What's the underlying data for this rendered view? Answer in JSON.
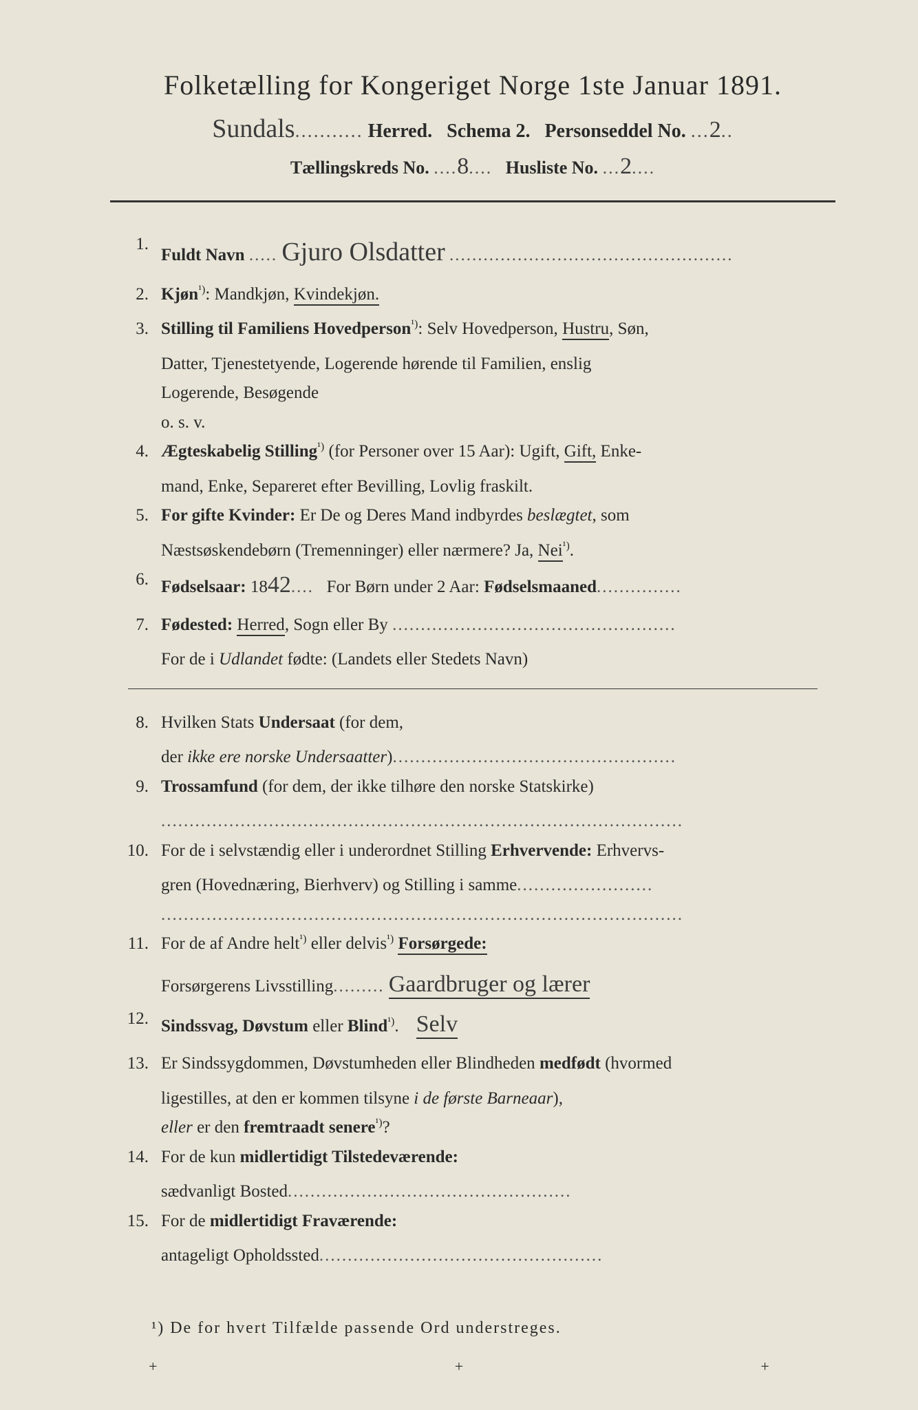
{
  "header": {
    "title": "Folketælling for Kongeriget Norge 1ste Januar 1891.",
    "herred_handwritten": "Sundals",
    "herred_label": "Herred.",
    "schema_label": "Schema 2.",
    "personseddel_label": "Personseddel No.",
    "personseddel_no": "2",
    "kreds_label": "Tællingskreds No.",
    "kreds_no": "8",
    "husliste_label": "Husliste No.",
    "husliste_no": "2"
  },
  "items": {
    "i1": {
      "num": "1.",
      "label": "Fuldt Navn",
      "value": "Gjuro Olsdatter"
    },
    "i2": {
      "num": "2.",
      "label": "Kjøn",
      "text": "Mandkjøn, ",
      "underlined": "Kvindekjøn."
    },
    "i3": {
      "num": "3.",
      "label": "Stilling til Familiens Hovedperson",
      "line1a": "Selv Hovedperson, ",
      "line1u": "Hustru",
      "line1b": ", Søn,",
      "line2": "Datter, Tjenestetyende, Logerende hørende til Familien, enslig",
      "line3": "Logerende, Besøgende",
      "line4": "o. s. v."
    },
    "i4": {
      "num": "4.",
      "label": "Ægteskabelig Stilling",
      "line1a": "(for Personer over 15 Aar): Ugift, ",
      "line1u": "Gift,",
      "line1b": " Enke-",
      "line2": "mand, Enke, Separeret efter Bevilling, Lovlig fraskilt."
    },
    "i5": {
      "num": "5.",
      "label": "For gifte Kvinder:",
      "line1": "Er De og Deres Mand indbyrdes ",
      "line1i": "beslægtet",
      "line1b": ", som",
      "line2a": "Næstsøskendebørn (Tremenninger) eller nærmere?  Ja, ",
      "line2u": "Nei"
    },
    "i6": {
      "num": "6.",
      "label": "Fødselsaar:",
      "prefix": "18",
      "year": "42",
      "rest": "For Børn under 2 Aar: ",
      "bold2": "Fødselsmaaned"
    },
    "i7": {
      "num": "7.",
      "label": "Fødested:",
      "underlined": "Herred",
      "rest": ", Sogn eller By",
      "line2a": "For de i ",
      "line2i": "Udlandet",
      "line2b": " fødte: (Landets eller Stedets Navn)"
    },
    "i8": {
      "num": "8.",
      "line1a": "Hvilken Stats ",
      "bold": "Undersaat",
      "line1b": " (for dem,",
      "line2a": "der ",
      "line2i": "ikke ere norske Undersaatter",
      "line2b": ")"
    },
    "i9": {
      "num": "9.",
      "bold": "Trossamfund",
      "text": " (for dem, der ikke tilhøre den norske Statskirke)"
    },
    "i10": {
      "num": "10.",
      "line1a": "For de i selvstændig eller i underordnet Stilling ",
      "bold": "Erhvervende:",
      "line1b": " Erhvervs-",
      "line2": "gren (Hovednæring, Bierhverv) og Stilling i samme"
    },
    "i11": {
      "num": "11.",
      "line1": "For de af Andre helt",
      "line1b": " eller delvis",
      "bold": "Forsørgede:",
      "line2": "Forsørgerens Livsstilling",
      "value": "Gaardbruger og lærer"
    },
    "i12": {
      "num": "12.",
      "bold": "Sindssvag, Døvstum",
      "text": " eller ",
      "bold2": "Blind",
      "value": "Selv"
    },
    "i13": {
      "num": "13.",
      "line1a": "Er Sindssygdommen, Døvstumheden eller Blindheden ",
      "bold": "medfødt",
      "line1b": " (hvormed",
      "line2a": "ligestilles, at den er kommen tilsyne ",
      "line2i": "i de første Barneaar",
      "line2b": "),",
      "line3a": "eller",
      "line3b": " er den ",
      "bold2": "fremtraadt senere"
    },
    "i14": {
      "num": "14.",
      "line1a": "For de kun ",
      "bold": "midlertidigt Tilstedeværende:",
      "line2": "sædvanligt Bosted"
    },
    "i15": {
      "num": "15.",
      "line1a": "For de ",
      "bold": "midlertidigt Fraværende:",
      "line2": "antageligt Opholdssted"
    }
  },
  "footnote": "¹) De for hvert Tilfælde passende Ord understreges.",
  "sup1": "¹)",
  "dots_short": ".....",
  "dots_med": "...........",
  "dots_long": "..................................................",
  "dots_xl": "............................................................................................",
  "marker": "+"
}
